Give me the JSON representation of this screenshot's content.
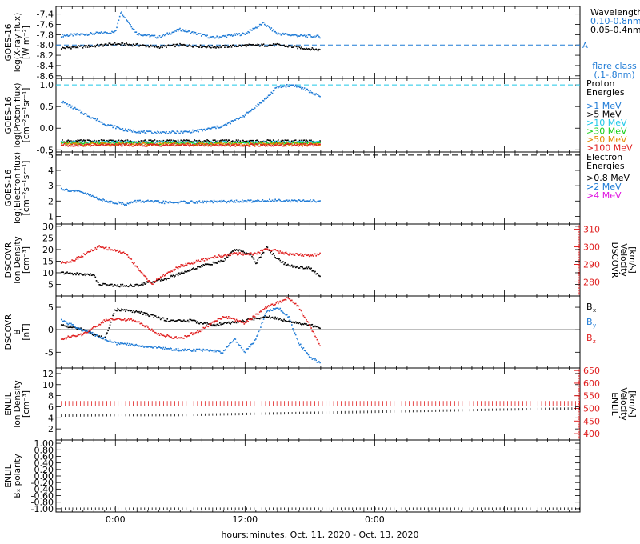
{
  "xaxis": {
    "title": "hours:minutes, Oct. 11, 2020 - Oct. 13, 2020",
    "range_hours": [
      -5.5,
      43
    ],
    "ticks": [
      {
        "h": 0,
        "label": "0:00"
      },
      {
        "h": 12,
        "label": "12:00"
      },
      {
        "h": 24,
        "label": "0:00"
      }
    ],
    "data_end_hours": 19
  },
  "colors": {
    "black": "#000000",
    "blue": "#1f7bd6",
    "cyan": "#1ec8e8",
    "green": "#18d018",
    "orange": "#e38a00",
    "red": "#e02020",
    "magenta": "#e018e0"
  },
  "panels": {
    "xray": {
      "ylabel": [
        "GOES-16",
        "log(X-ray flux)",
        "[W m⁻²]"
      ],
      "ticks": [
        "-7.4",
        "-7.6",
        "-7.8",
        "-8.0",
        "-8.2",
        "-8.4",
        "-8.6"
      ],
      "legend_title": "Wavelength",
      "legend": [
        "0.10-0.8nm",
        "0.05-0.4nm"
      ],
      "flare_marker": "A",
      "flare_caption": [
        "flare class",
        "(.1-.8nm)"
      ]
    },
    "proton": {
      "ylabel": [
        "GOES-16",
        "log(Proton flux)",
        "[cm⁻²s⁻¹sr⁻¹]"
      ],
      "ticks": [
        "1.0",
        "0.5",
        "0.0",
        "-0.5"
      ],
      "legend_title": [
        "Proton",
        "Energies"
      ],
      "legend": [
        ">1 MeV",
        ">5 MeV",
        ">10 MeV",
        ">30 MeV",
        ">50 MeV",
        ">100 MeV"
      ]
    },
    "electron": {
      "ylabel": [
        "GOES-16",
        "log(Electron flux)",
        "[cm⁻²s⁻¹sr⁻¹]"
      ],
      "ticks": [
        "5",
        "4",
        "3",
        "2",
        "1"
      ],
      "legend_title": [
        "Electron",
        "Energies"
      ],
      "legend": [
        ">0.8 MeV",
        ">2 MeV",
        ">4 MeV"
      ]
    },
    "dscovr_density": {
      "ylabel": [
        "DSCOVR",
        "Ion Density",
        "[cm⁻³]"
      ],
      "ticks": [
        "30",
        "25",
        "20",
        "15",
        "10",
        "5"
      ],
      "right_ylabel": [
        "DSCOVR",
        "Velocity",
        "[km/s]"
      ],
      "right_ticks": [
        "310",
        "300",
        "290",
        "280"
      ]
    },
    "dscovr_b": {
      "ylabel": [
        "DSCOVR",
        "B",
        "[nT]"
      ],
      "ticks": [
        "5",
        "0",
        "-5"
      ],
      "legend": [
        "B",
        "B",
        "B"
      ],
      "legend_sub": [
        "x",
        "y",
        "z"
      ]
    },
    "enlil_density": {
      "ylabel": [
        "ENLIL",
        "Ion Density",
        "[cm⁻³]"
      ],
      "ticks": [
        "12",
        "10",
        "8",
        "6",
        "4",
        "2"
      ],
      "right_ylabel": [
        "ENLIL",
        "Velocity",
        "[km/s]"
      ],
      "right_ticks": [
        "650",
        "600",
        "550",
        "500",
        "450",
        "400"
      ]
    },
    "enlil_bx": {
      "ylabel": [
        "ENLIL",
        "Bₓ polarity"
      ],
      "ticks": [
        "1.00",
        "0.80",
        "0.60",
        "0.40",
        "0.20",
        "0.00",
        "-0.20",
        "-0.40",
        "-0.60",
        "-0.80",
        "-1.00"
      ]
    }
  },
  "chart_data": [
    {
      "type": "scatter",
      "title": "GOES-16 X-ray flux",
      "xlabel": "hours",
      "ylabel": "log(X-ray flux) [W m-2]",
      "ylim": [
        -8.65,
        -7.25
      ],
      "flare_class_A_level": -8.0,
      "series": [
        {
          "name": "0.10-0.8nm",
          "color": "blue",
          "x": [
            -5,
            -2,
            0,
            0.5,
            2,
            4,
            6,
            9,
            12,
            13.7,
            15,
            17,
            19
          ],
          "y": [
            -7.82,
            -7.78,
            -7.75,
            -7.35,
            -7.78,
            -7.85,
            -7.7,
            -7.86,
            -7.78,
            -7.58,
            -7.78,
            -7.82,
            -7.84
          ]
        },
        {
          "name": "0.05-0.4nm",
          "color": "black",
          "x": [
            -5,
            -2,
            0,
            2,
            4,
            6,
            9,
            12,
            15,
            17,
            19
          ],
          "y": [
            -8.06,
            -8.02,
            -7.98,
            -8.0,
            -8.04,
            -8.0,
            -8.04,
            -8.01,
            -8.0,
            -8.05,
            -8.1
          ]
        }
      ]
    },
    {
      "type": "scatter",
      "title": "GOES-16 Proton flux",
      "xlabel": "hours",
      "ylabel": "log(Proton flux)",
      "ylim": [
        -0.55,
        1.15
      ],
      "threshold_level": 1.0,
      "series": [
        {
          "name": ">1 MeV",
          "color": "blue",
          "x": [
            -5,
            -3,
            -1,
            1,
            3,
            6,
            8,
            10,
            12,
            14,
            15,
            16.5,
            18,
            19
          ],
          "y": [
            0.62,
            0.35,
            0.1,
            -0.05,
            -0.1,
            -0.1,
            -0.05,
            0.05,
            0.3,
            0.7,
            0.95,
            1.0,
            0.85,
            0.72
          ]
        },
        {
          "name": ">5 MeV",
          "color": "black",
          "x": [
            -5,
            19
          ],
          "y": [
            -0.3,
            -0.3
          ]
        },
        {
          "name": ">10 MeV",
          "color": "cyan",
          "x": [
            -5,
            19
          ],
          "y": [
            -0.33,
            -0.33
          ]
        },
        {
          "name": ">30 MeV",
          "color": "green",
          "x": [
            -5,
            19
          ],
          "y": [
            -0.35,
            -0.35
          ]
        },
        {
          "name": ">50 MeV",
          "color": "orange",
          "x": [
            -5,
            19
          ],
          "y": [
            -0.37,
            -0.37
          ]
        },
        {
          "name": ">100 MeV",
          "color": "red",
          "x": [
            -5,
            19
          ],
          "y": [
            -0.39,
            -0.39
          ]
        }
      ]
    },
    {
      "type": "scatter",
      "title": "GOES-16 Electron flux",
      "xlabel": "hours",
      "ylabel": "log(Electron flux)",
      "ylim": [
        0.5,
        5.2
      ],
      "reference_level": 5.0,
      "series": [
        {
          "name": ">0.8 MeV",
          "color": "black",
          "x": [],
          "y": []
        },
        {
          "name": ">2 MeV",
          "color": "blue",
          "x": [
            -5,
            -3,
            -1,
            1,
            2,
            5,
            13,
            15,
            17,
            19
          ],
          "y": [
            2.8,
            2.55,
            2.0,
            1.8,
            2.0,
            1.9,
            2.0,
            2.05,
            2.0,
            2.0
          ]
        },
        {
          "name": ">4 MeV",
          "color": "magenta",
          "x": [],
          "y": []
        }
      ]
    },
    {
      "type": "line",
      "title": "DSCOVR Ion Density and Velocity",
      "xlabel": "hours",
      "ylabel": "Ion Density [cm-3]",
      "ylim": [
        0,
        31
      ],
      "y2label": "Velocity [km/s]",
      "y2lim": [
        272,
        313
      ],
      "series": [
        {
          "name": "Ion Density",
          "color": "black",
          "axis": "left",
          "x": [
            -5,
            -2,
            -1.5,
            0,
            2,
            3,
            4,
            5,
            8,
            10,
            11,
            12.5,
            13,
            14,
            15,
            16,
            18,
            19
          ],
          "y": [
            10,
            9,
            5,
            4.5,
            4.5,
            6,
            6.5,
            8,
            13,
            15,
            20,
            18,
            14,
            21,
            16,
            13,
            12,
            8
          ]
        },
        {
          "name": "Velocity",
          "color": "red",
          "axis": "right",
          "x": [
            -5,
            -4,
            -1.5,
            0,
            1,
            3,
            3.5,
            4,
            6,
            9,
            11,
            13,
            14,
            16,
            18,
            19
          ],
          "y": [
            291,
            292,
            300,
            298,
            296,
            281,
            279,
            282,
            289,
            294,
            296,
            296,
            299,
            296,
            295,
            296
          ]
        }
      ]
    },
    {
      "type": "line",
      "title": "DSCOVR B",
      "xlabel": "hours",
      "ylabel": "B [nT]",
      "ylim": [
        -8.5,
        7.5
      ],
      "series": [
        {
          "name": "Bx",
          "color": "black",
          "x": [
            -5,
            -3,
            -1,
            0,
            2,
            5,
            7,
            9,
            12,
            14,
            16,
            18,
            19
          ],
          "y": [
            1,
            0,
            -2,
            4.5,
            4,
            2,
            2,
            1,
            2,
            3,
            2,
            1,
            0.5
          ]
        },
        {
          "name": "By",
          "color": "blue",
          "x": [
            -5,
            -3,
            -1,
            0,
            2,
            4,
            6,
            8,
            10,
            11,
            12,
            13,
            14,
            15,
            16,
            17,
            18,
            19
          ],
          "y": [
            2,
            0,
            -2,
            -3,
            -3.5,
            -4,
            -4.5,
            -4.5,
            -5,
            -2,
            -5,
            -2,
            4,
            5,
            3,
            -3,
            -6,
            -7.5
          ]
        },
        {
          "name": "Bz",
          "color": "red",
          "x": [
            -5,
            -3,
            -1,
            0,
            2,
            4,
            6,
            8,
            10,
            12,
            14,
            15,
            16,
            17,
            18,
            19
          ],
          "y": [
            -2,
            -1,
            2,
            2.5,
            2,
            -1,
            -2,
            0,
            3,
            1.5,
            5,
            6,
            7,
            5,
            1,
            -4
          ]
        }
      ]
    },
    {
      "type": "line",
      "title": "ENLIL Ion Density and Velocity",
      "xlabel": "hours",
      "ylabel": "Ion Density [cm-3]",
      "ylim": [
        0,
        13
      ],
      "y2label": "Velocity [km/s]",
      "y2lim": [
        375,
        660
      ],
      "series": [
        {
          "name": "Ion Density",
          "color": "black",
          "axis": "left",
          "x": [
            -5,
            0,
            6,
            12,
            18,
            24,
            30,
            36,
            43
          ],
          "y": [
            4.4,
            4.5,
            4.5,
            4.7,
            4.9,
            5.1,
            5.3,
            5.5,
            5.7
          ]
        },
        {
          "name": "Velocity",
          "color": "red",
          "axis": "right",
          "x": [
            -5,
            43
          ],
          "y": [
            520,
            520
          ]
        }
      ]
    },
    {
      "type": "line",
      "title": "ENLIL Bx polarity",
      "xlabel": "hours",
      "ylabel": "Bx polarity",
      "ylim": [
        -1.1,
        1.1
      ],
      "series": [
        {
          "name": "Bx polarity",
          "color": "black",
          "x": [
            -5,
            43
          ],
          "y": [
            -1.0,
            -1.0
          ]
        }
      ]
    }
  ]
}
